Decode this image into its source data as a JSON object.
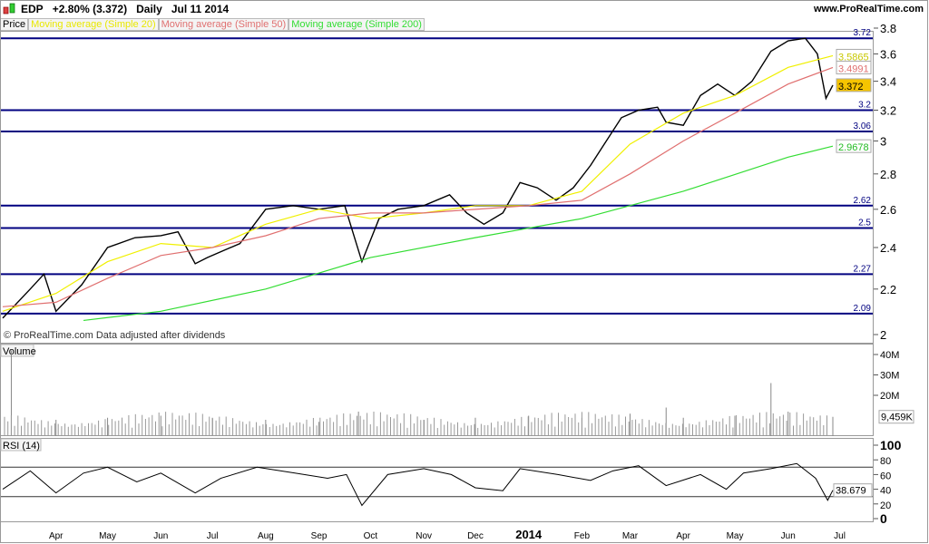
{
  "header": {
    "symbol": "EDP",
    "change": "+2.80% (3.372)",
    "period": "Daily",
    "date": "Jul 11 2014",
    "site": "www.ProRealTime.com",
    "logo_icon": "candlestick-icon"
  },
  "legend": {
    "price": "Price",
    "ma20": "Moving average (Simple 20)",
    "ma50": "Moving average (Simple 50)",
    "ma200": "Moving average (Simple 200)"
  },
  "colors": {
    "ma20": "#f0f000",
    "ma50": "#e07070",
    "ma200": "#33dd33",
    "levels": "#000080",
    "price": "#000000",
    "last_badge": "#f5c400"
  },
  "footnote": "© ProRealTime.com  Data adjusted after dividends",
  "volume_label": "Volume",
  "rsi_label": "RSI (14)",
  "chart_data": [
    {
      "type": "line",
      "name": "price",
      "yscale": "log",
      "ylim": [
        2,
        3.8
      ],
      "yticks": [
        2,
        2.2,
        2.4,
        2.6,
        2.8,
        3,
        3.2,
        3.4,
        3.6,
        3.8
      ],
      "ytick_labels": [
        "2",
        "2.2",
        "2.4",
        "2.6",
        "2.8",
        "3",
        "3.2",
        "3.4",
        "3.6",
        "3.8"
      ],
      "xticks": [
        {
          "date": "2013-04-15",
          "label": "Apr"
        },
        {
          "date": "2013-05-15",
          "label": "May"
        },
        {
          "date": "2013-06-15",
          "label": "Jun"
        },
        {
          "date": "2013-07-15",
          "label": "Jul"
        },
        {
          "date": "2013-08-15",
          "label": "Aug"
        },
        {
          "date": "2013-09-15",
          "label": "Sep"
        },
        {
          "date": "2013-10-15",
          "label": "Oct"
        },
        {
          "date": "2013-11-15",
          "label": "Nov"
        },
        {
          "date": "2013-12-15",
          "label": "Dec"
        },
        {
          "date": "2014-01-15",
          "label": "2014"
        },
        {
          "date": "2014-02-15",
          "label": "Feb"
        },
        {
          "date": "2014-03-15",
          "label": "Mar"
        },
        {
          "date": "2014-04-15",
          "label": "Apr"
        },
        {
          "date": "2014-05-15",
          "label": "May"
        },
        {
          "date": "2014-06-15",
          "label": "Jun"
        },
        {
          "date": "2014-07-15",
          "label": "Jul"
        }
      ],
      "xrange": [
        "2013-03-15",
        "2014-07-11"
      ],
      "series": [
        {
          "name": "Price",
          "dates": [
            "2013-03-15",
            "2013-03-31",
            "2013-04-08",
            "2013-04-15",
            "2013-04-30",
            "2013-05-15",
            "2013-05-31",
            "2013-06-15",
            "2013-06-25",
            "2013-07-05",
            "2013-07-12",
            "2013-07-31",
            "2013-08-15",
            "2013-08-31",
            "2013-09-15",
            "2013-09-30",
            "2013-10-05",
            "2013-10-10",
            "2013-10-20",
            "2013-10-31",
            "2013-11-15",
            "2013-11-30",
            "2013-12-10",
            "2013-12-20",
            "2013-12-31",
            "2014-01-10",
            "2014-01-20",
            "2014-01-31",
            "2014-02-10",
            "2014-02-20",
            "2014-02-28",
            "2014-03-10",
            "2014-03-20",
            "2014-03-31",
            "2014-04-05",
            "2014-04-15",
            "2014-04-25",
            "2014-05-05",
            "2014-05-15",
            "2014-05-25",
            "2014-06-05",
            "2014-06-15",
            "2014-06-25",
            "2014-07-02",
            "2014-07-07",
            "2014-07-11"
          ],
          "values": [
            2.07,
            2.2,
            2.27,
            2.1,
            2.22,
            2.4,
            2.45,
            2.46,
            2.48,
            2.32,
            2.35,
            2.42,
            2.6,
            2.62,
            2.6,
            2.62,
            2.47,
            2.33,
            2.55,
            2.6,
            2.62,
            2.68,
            2.58,
            2.52,
            2.58,
            2.75,
            2.72,
            2.65,
            2.72,
            2.85,
            2.98,
            3.15,
            3.2,
            3.22,
            3.12,
            3.1,
            3.3,
            3.38,
            3.3,
            3.4,
            3.62,
            3.7,
            3.72,
            3.6,
            3.28,
            3.372
          ]
        },
        {
          "name": "Moving average (Simple 20)",
          "dates": [
            "2013-03-15",
            "2013-04-15",
            "2013-05-15",
            "2013-06-15",
            "2013-07-15",
            "2013-08-15",
            "2013-09-15",
            "2013-10-15",
            "2013-11-15",
            "2013-12-15",
            "2014-01-15",
            "2014-02-15",
            "2014-03-15",
            "2014-04-15",
            "2014-05-15",
            "2014-06-15",
            "2014-07-11"
          ],
          "values": [
            2.1,
            2.18,
            2.33,
            2.42,
            2.4,
            2.52,
            2.6,
            2.55,
            2.58,
            2.62,
            2.62,
            2.7,
            2.98,
            3.18,
            3.3,
            3.5,
            3.5865
          ]
        },
        {
          "name": "Moving average (Simple 50)",
          "dates": [
            "2013-03-15",
            "2013-04-15",
            "2013-05-15",
            "2013-06-15",
            "2013-07-15",
            "2013-08-15",
            "2013-09-15",
            "2013-10-15",
            "2013-11-15",
            "2013-12-15",
            "2014-01-15",
            "2014-02-15",
            "2014-03-15",
            "2014-04-15",
            "2014-05-15",
            "2014-06-15",
            "2014-07-11"
          ],
          "values": [
            2.12,
            2.14,
            2.25,
            2.36,
            2.4,
            2.46,
            2.55,
            2.58,
            2.58,
            2.6,
            2.62,
            2.65,
            2.8,
            3.0,
            3.18,
            3.38,
            3.4991
          ]
        },
        {
          "name": "Moving average (Simple 200)",
          "dates": [
            "2013-05-01",
            "2013-06-15",
            "2013-08-15",
            "2013-10-15",
            "2013-12-15",
            "2014-02-15",
            "2014-04-15",
            "2014-06-15",
            "2014-07-11"
          ],
          "values": [
            2.06,
            2.1,
            2.2,
            2.35,
            2.45,
            2.55,
            2.7,
            2.9,
            2.9678
          ]
        }
      ],
      "levels": [
        3.72,
        3.2,
        3.06,
        2.62,
        2.5,
        2.27,
        2.09
      ],
      "badges": {
        "ma20": "3.5865",
        "ma50": "3.4991",
        "last": "3.372",
        "ma200": "2.9678"
      }
    },
    {
      "type": "bar",
      "name": "volume",
      "ylim": [
        0,
        45000000
      ],
      "yticks": [
        20000000,
        30000000,
        40000000
      ],
      "ytick_labels": [
        "20M",
        "30M",
        "40M"
      ],
      "last_label": "9,459K",
      "dates": [
        "2013-03-20",
        "2013-04-15",
        "2013-05-15",
        "2013-06-15",
        "2013-07-15",
        "2013-08-15",
        "2013-09-15",
        "2013-10-08",
        "2013-11-15",
        "2013-12-15",
        "2014-01-15",
        "2014-02-15",
        "2014-03-15",
        "2014-04-05",
        "2014-04-15",
        "2014-05-15",
        "2014-06-05",
        "2014-06-15",
        "2014-07-11"
      ],
      "values": [
        42000000,
        8000000,
        9000000,
        10000000,
        9000000,
        8000000,
        7000000,
        12000000,
        8000000,
        9000000,
        10000000,
        9000000,
        11000000,
        14000000,
        9000000,
        10000000,
        26000000,
        12000000,
        9459000
      ]
    },
    {
      "type": "line",
      "name": "rsi",
      "ylim": [
        0,
        100
      ],
      "yticks": [
        0,
        20,
        40,
        60,
        80,
        100
      ],
      "ytick_labels": [
        "0",
        "20",
        "40",
        "60",
        "80",
        "100"
      ],
      "levels": [
        70,
        30
      ],
      "last_label": "38.679",
      "dates": [
        "2013-03-15",
        "2013-03-31",
        "2013-04-15",
        "2013-05-01",
        "2013-05-15",
        "2013-06-01",
        "2013-06-15",
        "2013-07-05",
        "2013-07-20",
        "2013-08-10",
        "2013-09-01",
        "2013-09-20",
        "2013-10-01",
        "2013-10-10",
        "2013-10-25",
        "2013-11-15",
        "2013-12-01",
        "2013-12-15",
        "2013-12-31",
        "2014-01-10",
        "2014-02-01",
        "2014-02-20",
        "2014-03-05",
        "2014-03-20",
        "2014-04-05",
        "2014-04-25",
        "2014-05-10",
        "2014-05-20",
        "2014-06-05",
        "2014-06-20",
        "2014-07-01",
        "2014-07-08",
        "2014-07-11"
      ],
      "values": [
        40,
        65,
        35,
        62,
        70,
        50,
        62,
        35,
        55,
        70,
        62,
        55,
        60,
        18,
        60,
        68,
        60,
        42,
        38,
        68,
        60,
        52,
        65,
        72,
        45,
        60,
        40,
        62,
        68,
        75,
        55,
        25,
        38.679
      ]
    }
  ]
}
